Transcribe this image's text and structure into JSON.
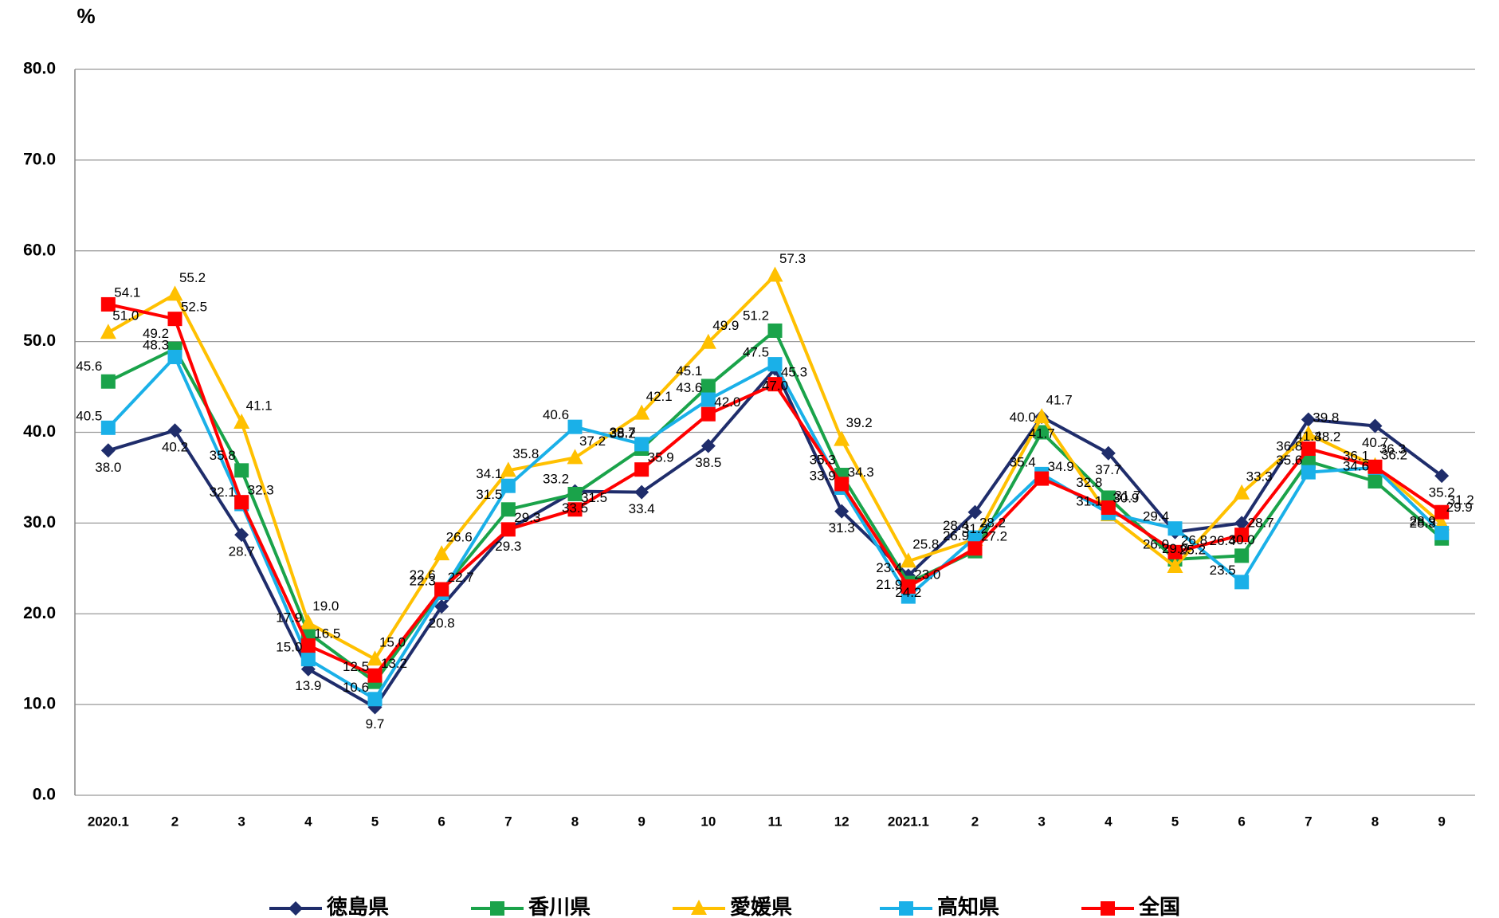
{
  "chart_data": {
    "type": "line",
    "y_label": "%",
    "categories": [
      "2020.1",
      "2",
      "3",
      "4",
      "5",
      "6",
      "7",
      "8",
      "9",
      "10",
      "11",
      "12",
      "2021.1",
      "2",
      "3",
      "4",
      "5",
      "6",
      "7",
      "8",
      "9"
    ],
    "ylim": [
      0,
      80
    ],
    "yticks": [
      {
        "value": 0,
        "label": "0.0"
      },
      {
        "value": 10,
        "label": "10.0"
      },
      {
        "value": 20,
        "label": "20.0"
      },
      {
        "value": 30,
        "label": "30.0"
      },
      {
        "value": 40,
        "label": "40.0"
      },
      {
        "value": 50,
        "label": "50.0"
      },
      {
        "value": 60,
        "label": "60.0"
      },
      {
        "value": 70,
        "label": "70.0"
      },
      {
        "value": 80,
        "label": "80.0"
      }
    ],
    "grid": true,
    "legend": "bottom",
    "series": [
      {
        "name": "徳島県",
        "color": "#1f2d6b",
        "marker": "diamond",
        "values": [
          38.0,
          40.2,
          28.7,
          13.9,
          9.7,
          20.8,
          29.3,
          33.5,
          33.4,
          38.5,
          47.0,
          31.3,
          24.2,
          31.2,
          41.7,
          37.7,
          29.0,
          30.0,
          41.4,
          40.7,
          35.2
        ],
        "value_labels": [
          "38.0",
          "40.2",
          "28.7",
          "13.9",
          "9.7",
          "20.8",
          "29.3",
          "33.5",
          "33.4",
          "38.5",
          "47.0",
          "31.3",
          "24.2",
          "31.2",
          "41.7",
          "37.7",
          "29.0",
          "30.0",
          "41.4",
          "40.7",
          "35.2"
        ]
      },
      {
        "name": "香川県",
        "color": "#1aa34a",
        "marker": "square",
        "values": [
          45.6,
          49.2,
          35.8,
          17.9,
          12.5,
          22.6,
          31.5,
          33.2,
          38.2,
          45.1,
          51.2,
          35.3,
          23.4,
          26.9,
          40.0,
          32.8,
          26.0,
          26.4,
          36.8,
          34.6,
          28.3
        ],
        "value_labels": [
          "45.6",
          "49.2",
          "35.8",
          "17.9",
          "12.5",
          "22.6",
          "31.5",
          "33.2",
          "38.2",
          "45.1",
          "51.2",
          "35.3",
          "23.4",
          "26.9",
          "40.0",
          "32.8",
          "26.0",
          "26.4",
          "36.8",
          "34.6",
          "28.3"
        ]
      },
      {
        "name": "愛媛県",
        "color": "#ffc000",
        "marker": "triangle",
        "values": [
          51.0,
          55.2,
          41.1,
          19.0,
          15.0,
          26.6,
          35.8,
          37.2,
          42.1,
          49.9,
          57.3,
          39.2,
          25.8,
          28.2,
          41.7,
          30.9,
          25.2,
          33.3,
          39.8,
          36.3,
          29.9
        ],
        "value_labels": [
          "51.0",
          "55.2",
          "41.1",
          "19.0",
          "15.0",
          "26.6",
          "35.8",
          "37.2",
          "42.1",
          "49.9",
          "57.3",
          "39.2",
          "25.8",
          "28.2",
          "41.7",
          "30.9",
          "25.2",
          "33.3",
          "39.8",
          "36.3",
          "29.9"
        ]
      },
      {
        "name": "高知県",
        "color": "#1ab0e8",
        "marker": "square",
        "values": [
          40.5,
          48.3,
          32.1,
          15.0,
          10.6,
          22.3,
          34.1,
          40.6,
          38.7,
          43.6,
          47.5,
          33.9,
          21.9,
          28.4,
          35.4,
          31.1,
          29.4,
          23.5,
          35.6,
          36.1,
          28.9
        ],
        "value_labels": [
          "40.5",
          "48.3",
          "32.1",
          "15.0",
          "10.6",
          "22.3",
          "34.1",
          "40.6",
          "38.7",
          "43.6",
          "47.5",
          "33.9",
          "21.9",
          "28.4",
          "35.4",
          "31.1",
          "29.4",
          "23.5",
          "35.6",
          "36.1",
          "28.9"
        ]
      },
      {
        "name": "全国",
        "color": "#ff0000",
        "marker": "square",
        "values": [
          54.1,
          52.5,
          32.3,
          16.5,
          13.2,
          22.7,
          29.3,
          31.5,
          35.9,
          42.0,
          45.3,
          34.3,
          23.0,
          27.2,
          34.9,
          31.7,
          26.8,
          28.7,
          38.2,
          36.2,
          31.2
        ],
        "value_labels": [
          "54.1",
          "52.5",
          "32.3",
          "16.5",
          "13.2",
          "22.7",
          "29.3",
          "31.5",
          "35.9",
          "42.0",
          "45.3",
          "34.3",
          "23.0",
          "27.2",
          "34.9",
          "31.7",
          "26.8",
          "28.7",
          "38.2",
          "36.2",
          "31.2"
        ]
      }
    ]
  }
}
